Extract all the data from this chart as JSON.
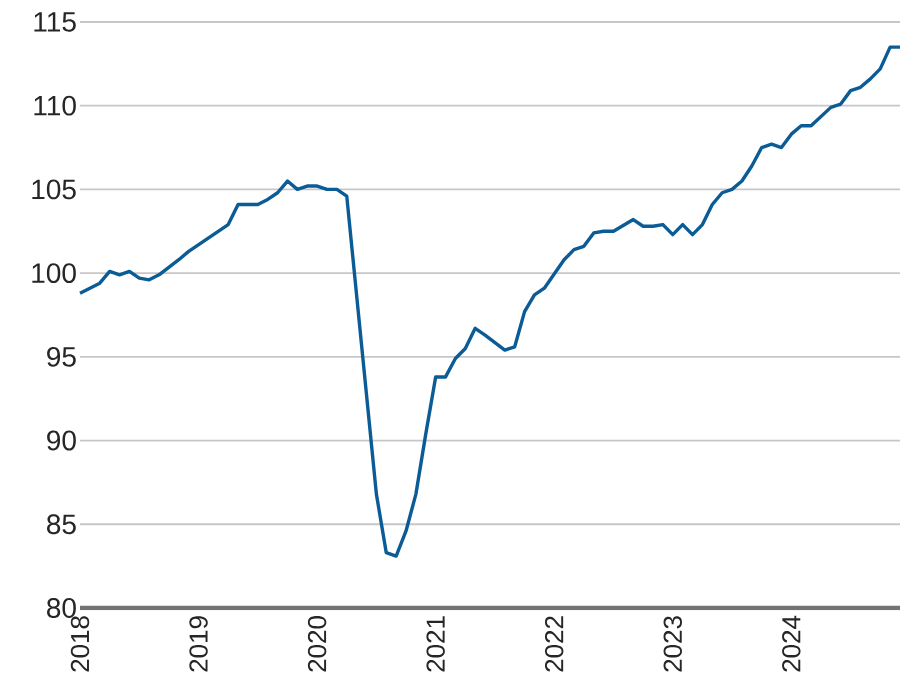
{
  "chart_data": {
    "type": "line",
    "color": "#0b5c96",
    "x": [
      "2018-01",
      "2018-03",
      "2018-04",
      "2018-05",
      "2018-06",
      "2018-07",
      "2018-08",
      "2018-09",
      "2018-11",
      "2018-12",
      "2019-01",
      "2019-04",
      "2019-05",
      "2019-07",
      "2019-08",
      "2019-09",
      "2019-10",
      "2019-11",
      "2019-12",
      "2020-01",
      "2020-02",
      "2020-03",
      "2020-04",
      "2020-07",
      "2020-08",
      "2020-09",
      "2020-10",
      "2020-11",
      "2020-12",
      "2021-01",
      "2021-02",
      "2021-03",
      "2021-04",
      "2021-05",
      "2021-06",
      "2021-08",
      "2021-09",
      "2021-10",
      "2021-11",
      "2021-12",
      "2022-02",
      "2022-03",
      "2022-04",
      "2022-05",
      "2022-06",
      "2022-07",
      "2022-09",
      "2022-10",
      "2022-11",
      "2022-12",
      "2023-01",
      "2023-02",
      "2023-03",
      "2023-04",
      "2023-05",
      "2023-06",
      "2023-07",
      "2023-08",
      "2023-09",
      "2023-10",
      "2023-11",
      "2023-12",
      "2024-01",
      "2024-02",
      "2024-03",
      "2024-05",
      "2024-06",
      "2024-07",
      "2024-08",
      "2024-09",
      "2024-10",
      "2024-11",
      "2024-12"
    ],
    "values": [
      98.8,
      99.4,
      100.1,
      99.9,
      100.1,
      99.7,
      99.6,
      99.9,
      100.8,
      101.3,
      101.7,
      102.9,
      104.1,
      104.1,
      104.4,
      104.8,
      105.5,
      105.0,
      105.2,
      105.2,
      105.0,
      105.0,
      104.6,
      86.8,
      83.3,
      83.1,
      84.6,
      86.8,
      90.4,
      93.8,
      93.8,
      94.9,
      95.5,
      96.7,
      96.3,
      95.4,
      95.6,
      97.7,
      98.7,
      99.1,
      100.8,
      101.4,
      101.6,
      102.4,
      102.5,
      102.5,
      103.2,
      102.8,
      102.8,
      102.9,
      102.3,
      102.9,
      102.3,
      102.9,
      104.1,
      104.8,
      105.0,
      105.5,
      106.4,
      107.5,
      107.7,
      107.5,
      108.3,
      108.8,
      108.8,
      109.9,
      110.1,
      110.9,
      111.1,
      111.6,
      112.2,
      113.5,
      113.5
    ],
    "xlim": [
      "2018-01",
      "2024-12"
    ],
    "xticks": [
      "2018",
      "2019",
      "2020",
      "2021",
      "2022",
      "2023",
      "2024"
    ],
    "ylim": [
      80,
      115
    ],
    "yticks": [
      80,
      85,
      90,
      95,
      100,
      105,
      110,
      115
    ],
    "grid": "y",
    "line_style": "solid",
    "marker": "none"
  }
}
